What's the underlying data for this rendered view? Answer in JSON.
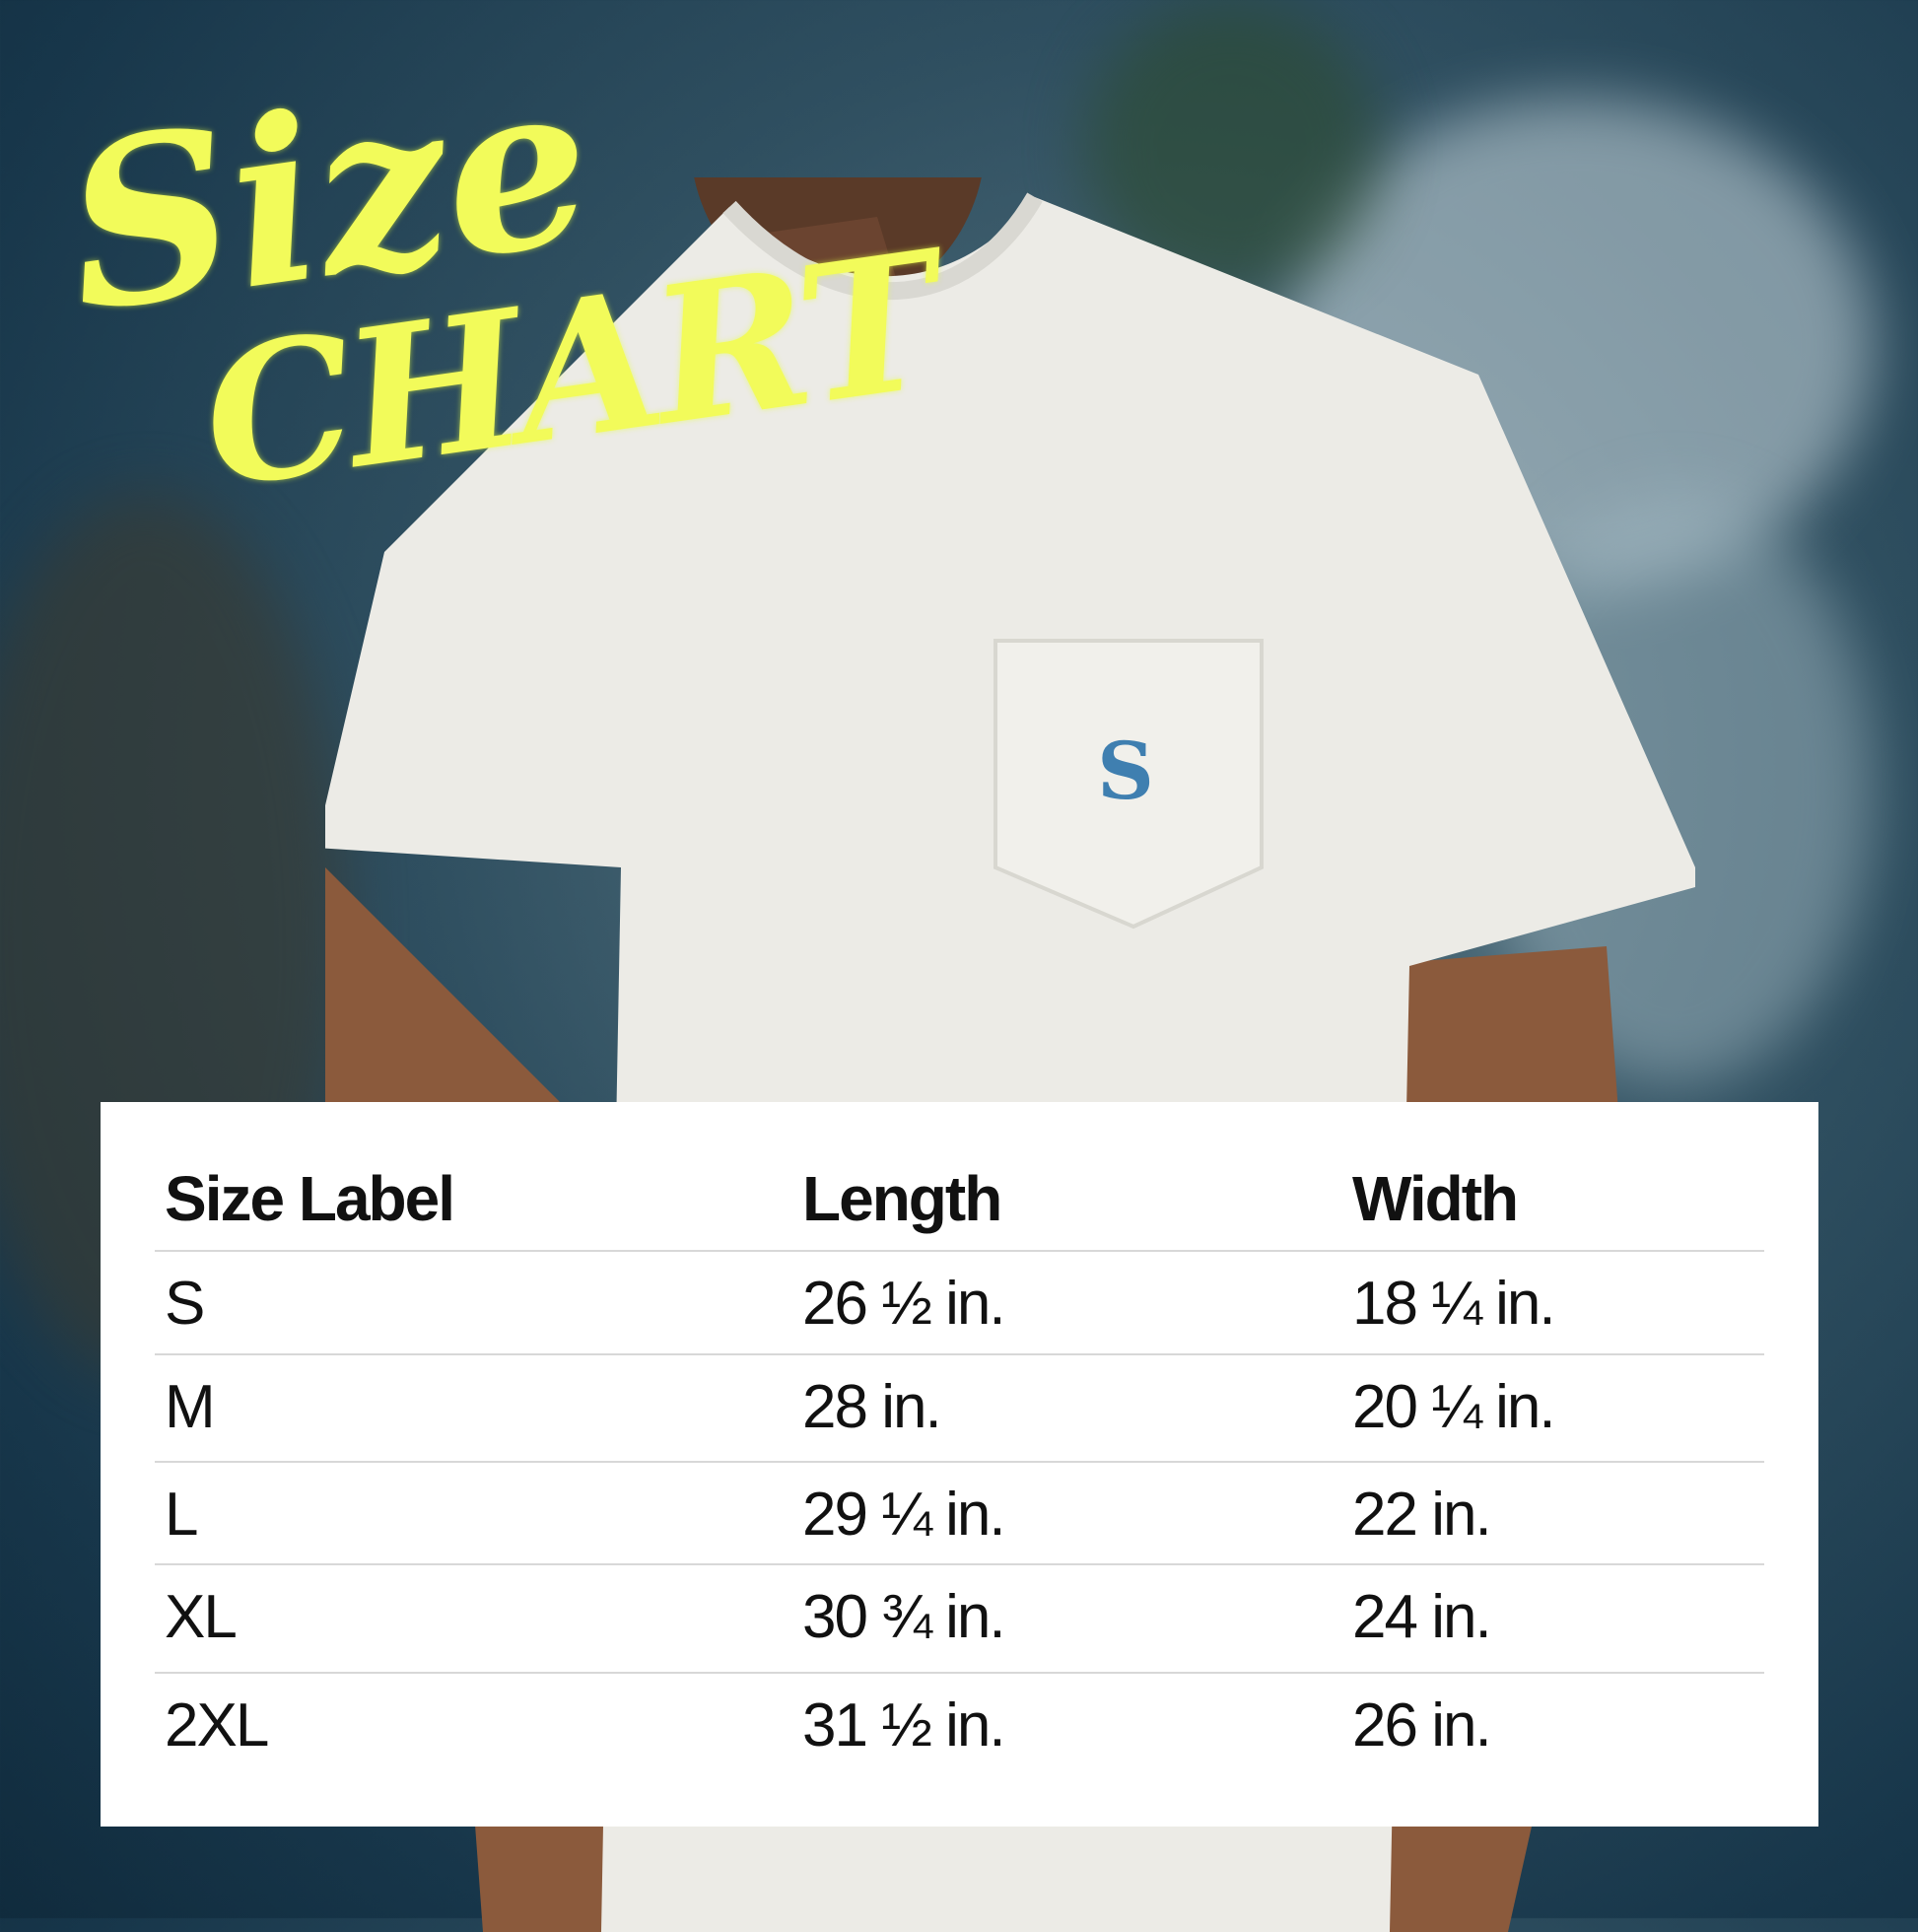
{
  "title": {
    "line1": "Size",
    "line2": "Chart"
  },
  "logo": {
    "letter": "S",
    "color": "#3f7fb0"
  },
  "colors": {
    "title": "#f2fb5a",
    "background": "#17364a",
    "shirt": "#ecebe6"
  },
  "table": {
    "headers": [
      "Size Label",
      "Length",
      "Width"
    ],
    "rows": [
      [
        "S",
        "26 ½ in.",
        "18 ¼ in."
      ],
      [
        "M",
        "28 in.",
        "20 ¼ in."
      ],
      [
        "L",
        "29 ¼ in.",
        "22 in."
      ],
      [
        "XL",
        "30 ¾ in.",
        "24 in."
      ],
      [
        "2XL",
        "31 ½ in.",
        "26 in."
      ]
    ]
  }
}
